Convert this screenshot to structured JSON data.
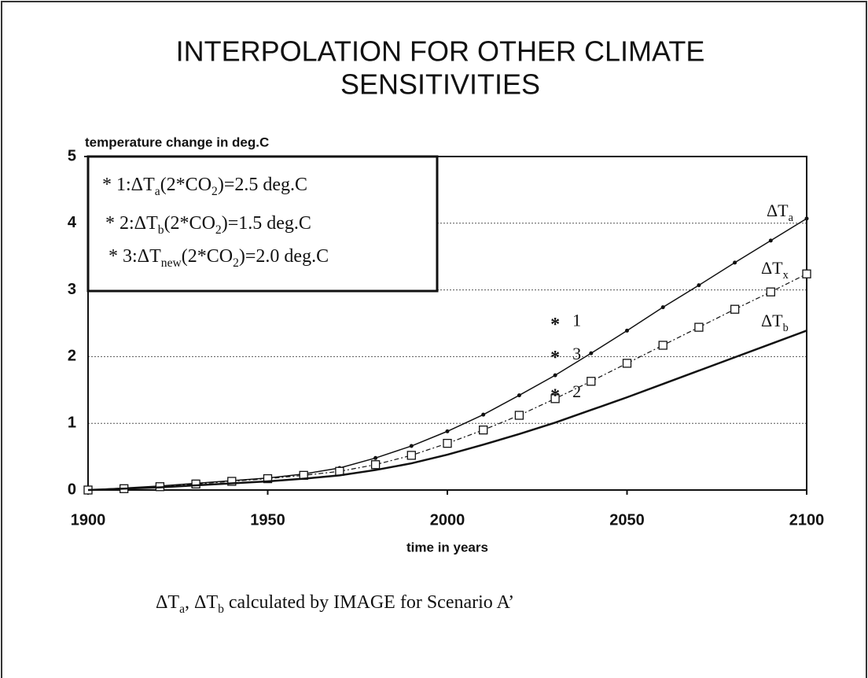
{
  "chart_data": {
    "type": "line",
    "title": [
      "INTERPOLATION FOR OTHER CLIMATE",
      "SENSITIVITIES"
    ],
    "y_label": "temperature change in deg.C",
    "x_label": "time in years",
    "x": [
      1900,
      1910,
      1920,
      1930,
      1940,
      1950,
      1960,
      1970,
      1980,
      1990,
      2000,
      2010,
      2020,
      2030,
      2040,
      2050,
      2060,
      2070,
      2080,
      2090,
      2100
    ],
    "series": [
      {
        "name": [
          "ΔT",
          "a"
        ],
        "color": "#111111",
        "marker": "dot",
        "dash": false,
        "linewidth": 1.5,
        "values": [
          0,
          0.03,
          0.06,
          0.1,
          0.14,
          0.18,
          0.24,
          0.33,
          0.48,
          0.66,
          0.88,
          1.13,
          1.42,
          1.72,
          2.05,
          2.39,
          2.74,
          3.07,
          3.41,
          3.74,
          4.07
        ]
      },
      {
        "name": [
          "ΔT",
          "x"
        ],
        "color": "#111111",
        "marker": "square",
        "dash": true,
        "linewidth": 1.2,
        "values": [
          0,
          0.02,
          0.05,
          0.09,
          0.13,
          0.17,
          0.22,
          0.28,
          0.38,
          0.52,
          0.7,
          0.9,
          1.12,
          1.37,
          1.63,
          1.9,
          2.17,
          2.44,
          2.71,
          2.97,
          3.24
        ]
      },
      {
        "name": [
          "ΔT",
          "b"
        ],
        "color": "#111111",
        "marker": "none",
        "dash": false,
        "linewidth": 2.5,
        "values": [
          0,
          0.02,
          0.04,
          0.07,
          0.1,
          0.13,
          0.17,
          0.22,
          0.3,
          0.4,
          0.53,
          0.68,
          0.84,
          1.01,
          1.2,
          1.39,
          1.59,
          1.79,
          1.99,
          2.19,
          2.39
        ]
      }
    ],
    "points": [
      {
        "x": 2030,
        "y": 2.52,
        "label": "1"
      },
      {
        "x": 2030,
        "y": 1.45,
        "label": "2"
      },
      {
        "x": 2030,
        "y": 2.02,
        "label": "3"
      }
    ],
    "legend": [
      [
        "* 1:ΔT",
        "a",
        "(2*CO",
        "2",
        ")=2.5 deg.C"
      ],
      [
        "* 2:ΔT",
        "b",
        "(2*CO",
        "2",
        ")=1.5 deg.C"
      ],
      [
        "* 3:ΔT",
        "new",
        "(2*CO",
        "2",
        ")=2.0 deg.C"
      ]
    ],
    "footnote": [
      "ΔT",
      "a",
      ", ΔT",
      "b",
      " calculated by IMAGE  for Scenario A’"
    ],
    "xlim": [
      1900,
      2100
    ],
    "xticks": [
      1900,
      1950,
      2000,
      2050,
      2100
    ],
    "ylim": [
      0,
      5
    ],
    "yticks": [
      0,
      1,
      2,
      3,
      4,
      5
    ],
    "grid": true
  }
}
